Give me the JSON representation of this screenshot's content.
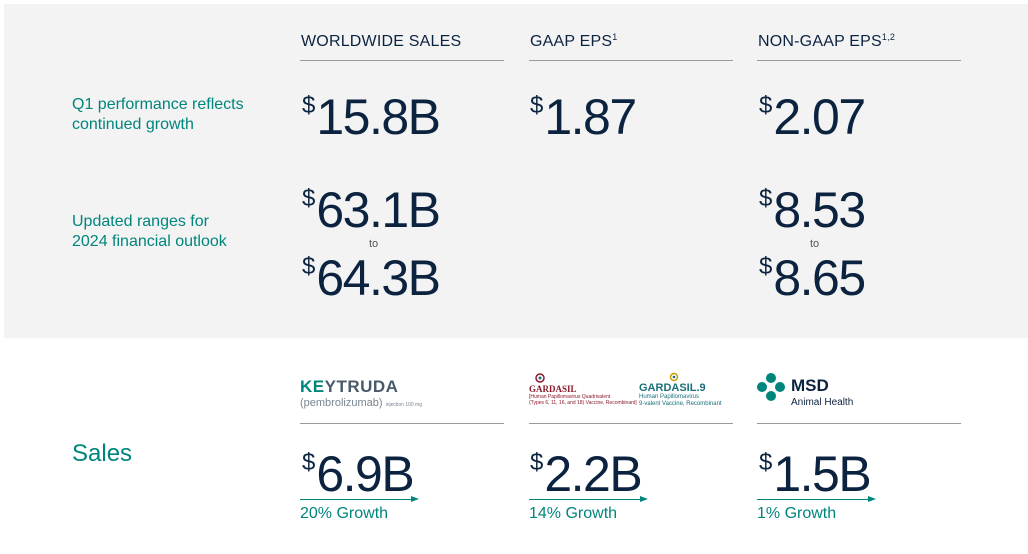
{
  "columns": {
    "worldwide_sales": "WORLDWIDE SALES",
    "gaap_eps": "GAAP EPS",
    "gaap_eps_sup": "1",
    "non_gaap_eps": "NON-GAAP EPS",
    "non_gaap_eps_sup": "1,2"
  },
  "rows": {
    "q1": {
      "label_line1": "Q1 performance reflects",
      "label_line2": "continued growth",
      "sales_currency": "$",
      "sales_value": "15.8B",
      "gaap_currency": "$",
      "gaap_value": "1.87",
      "nongaap_currency": "$",
      "nongaap_value": "2.07"
    },
    "outlook": {
      "label_line1": "Updated ranges for",
      "label_line2": "2024 financial outlook",
      "sales_low_currency": "$",
      "sales_low": "63.1B",
      "sales_to": "to",
      "sales_high_currency": "$",
      "sales_high": "64.3B",
      "nongaap_low_currency": "$",
      "nongaap_low": "8.53",
      "nongaap_to": "to",
      "nongaap_high_currency": "$",
      "nongaap_high": "8.65"
    }
  },
  "sales": {
    "label": "Sales",
    "keytruda": {
      "logo_key": "KE",
      "logo_ytr": "YTRUDA",
      "logo_sub": "(pembrolizumab)",
      "logo_sub_small": "injection 100 mg",
      "currency": "$",
      "value": "6.9B",
      "growth": "20% Growth"
    },
    "gardasil": {
      "logo_title": "GARDASIL",
      "logo_sub1": "[Human Papillomavirus Quadrivalent",
      "logo_sub2": "(Types 6, 11, 16, and 18) Vaccine, Recombinant]",
      "logo9_title": "GARDASIL.9",
      "logo9_sub1": "Human Papillomavirus",
      "logo9_sub2": "9-valent Vaccine, Recombinant",
      "currency": "$",
      "value": "2.2B",
      "growth": "14% Growth"
    },
    "msd": {
      "logo_name": "MSD",
      "logo_sub": "Animal Health",
      "currency": "$",
      "value": "1.5B",
      "growth": "1% Growth"
    }
  },
  "colors": {
    "teal": "#00857c",
    "navy": "#0c2340",
    "panel": "#f3f3f3"
  }
}
